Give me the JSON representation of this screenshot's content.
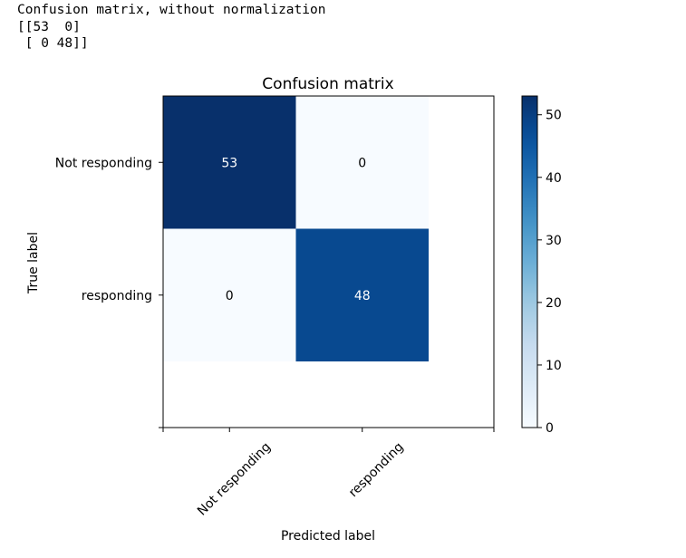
{
  "console": {
    "lines": [
      "Confusion matrix, without normalization",
      "[[53  0]",
      " [ 0 48]]"
    ]
  },
  "chart_data": {
    "type": "heatmap",
    "title": "Confusion matrix",
    "xlabel": "Predicted label",
    "ylabel": "True label",
    "x_categories": [
      "Not responding",
      "responding"
    ],
    "y_categories": [
      "Not responding",
      "responding"
    ],
    "values": [
      [
        53,
        0
      ],
      [
        0,
        48
      ]
    ],
    "colormap": "Blues",
    "vmin": 0,
    "vmax": 53,
    "colorbar_ticks": [
      0,
      10,
      20,
      30,
      40,
      50
    ],
    "colors": {
      "low": "#f7fbff",
      "high": "#08306b",
      "text_light": "#ffffff",
      "text_dark": "#000000"
    }
  }
}
